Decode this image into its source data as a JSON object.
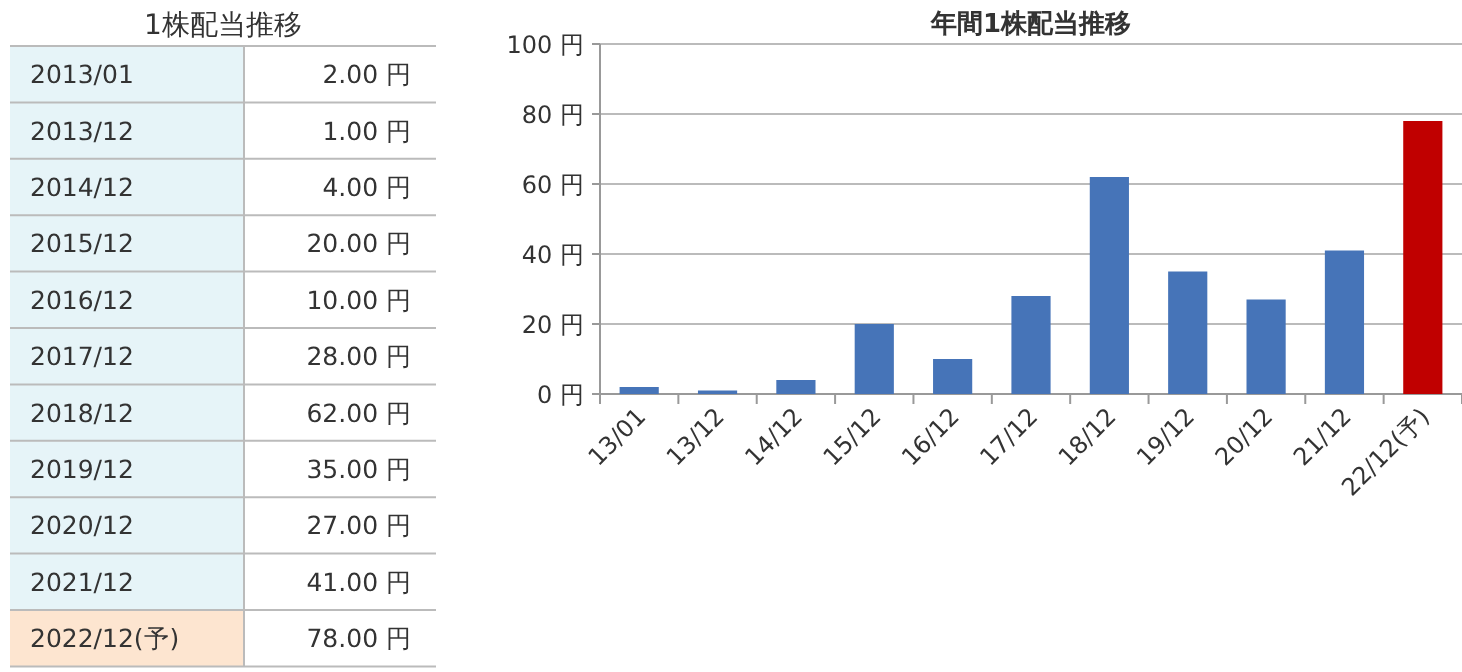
{
  "chart_data": [
    {
      "type": "other",
      "title": "1株配当推移",
      "categories": [
        "2013/01",
        "2013/12",
        "2014/12",
        "2015/12",
        "2016/12",
        "2017/12",
        "2018/12",
        "2019/12",
        "2020/12",
        "2021/12",
        "2022/12(予)"
      ],
      "values": [
        2,
        1,
        4,
        20,
        10,
        28,
        62,
        35,
        27,
        41,
        78
      ],
      "value_labels": [
        "2.00 円",
        "1.00 円",
        "4.00 円",
        "20.00 円",
        "10.00 円",
        "28.00 円",
        "62.00 円",
        "35.00 円",
        "27.00 円",
        "41.00 円",
        "78.00 円"
      ],
      "colors": [
        "#e6f4f8",
        "#e6f4f8",
        "#e6f4f8",
        "#e6f4f8",
        "#e6f4f8",
        "#e6f4f8",
        "#e6f4f8",
        "#e6f4f8",
        "#e6f4f8",
        "#e6f4f8",
        "#fde5d0"
      ]
    },
    {
      "type": "bar",
      "title": "年間1株配当推移",
      "categories": [
        "13/01",
        "13/12",
        "14/12",
        "15/12",
        "16/12",
        "17/12",
        "18/12",
        "19/12",
        "20/12",
        "21/12",
        "22/12(予)"
      ],
      "values": [
        2,
        1,
        4,
        20,
        10,
        28,
        62,
        35,
        27,
        41,
        78
      ],
      "colors": [
        "#4674b8",
        "#4674b8",
        "#4674b8",
        "#4674b8",
        "#4674b8",
        "#4674b8",
        "#4674b8",
        "#4674b8",
        "#4674b8",
        "#4674b8",
        "#c00000"
      ],
      "ylim": [
        0,
        100
      ],
      "yticks": [
        {
          "value": 0,
          "label": "0 円"
        },
        {
          "value": 20,
          "label": "20 円"
        },
        {
          "value": 40,
          "label": "40 円"
        },
        {
          "value": 60,
          "label": "60 円"
        },
        {
          "value": 80,
          "label": "80 円"
        },
        {
          "value": 100,
          "label": "100 円"
        }
      ],
      "grid": "y"
    }
  ]
}
